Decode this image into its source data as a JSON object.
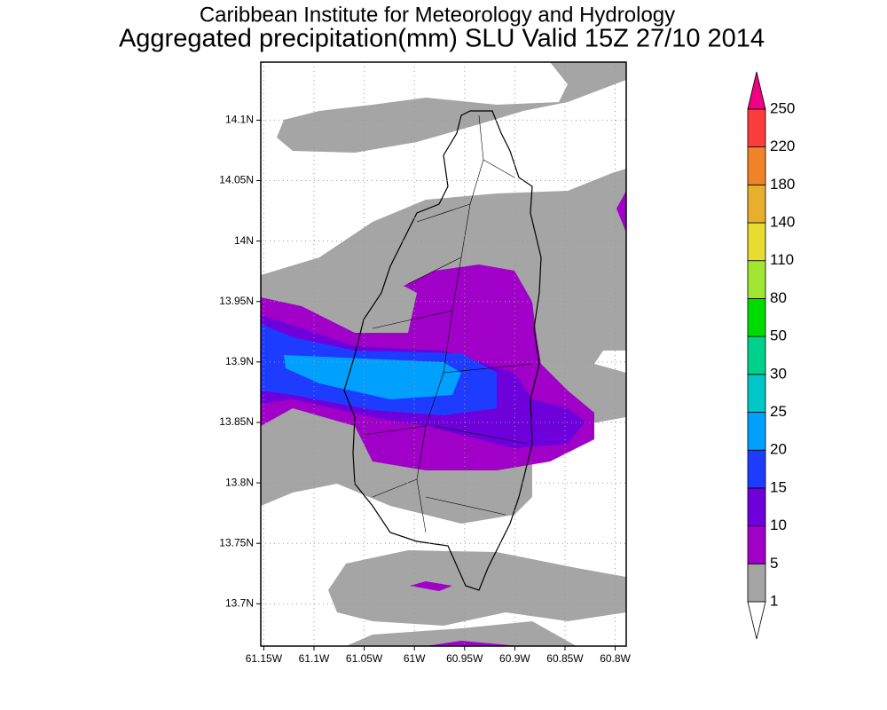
{
  "title": "Caribbean Institute for Meteorology and Hydrology",
  "subtitle": "Aggregated precipitation(mm) SLU Valid 15Z 27/10 2014",
  "map": {
    "xlim": [
      -61.153,
      -60.789
    ],
    "ylim": [
      13.665,
      14.148
    ],
    "xticks": [
      {
        "value": -61.15,
        "label": "61.15W"
      },
      {
        "value": -61.1,
        "label": "61.1W"
      },
      {
        "value": -61.05,
        "label": "61.05W"
      },
      {
        "value": -61.0,
        "label": "61W"
      },
      {
        "value": -60.95,
        "label": "60.95W"
      },
      {
        "value": -60.9,
        "label": "60.9W"
      },
      {
        "value": -60.85,
        "label": "60.85W"
      },
      {
        "value": -60.8,
        "label": "60.8W"
      }
    ],
    "yticks": [
      {
        "value": 13.7,
        "label": "13.7N"
      },
      {
        "value": 13.75,
        "label": "13.75N"
      },
      {
        "value": 13.8,
        "label": "13.8N"
      },
      {
        "value": 13.85,
        "label": "13.85N"
      },
      {
        "value": 13.9,
        "label": "13.9N"
      },
      {
        "value": 13.95,
        "label": "13.95N"
      },
      {
        "value": 14.0,
        "label": "14N"
      },
      {
        "value": 14.05,
        "label": "14.05N"
      },
      {
        "value": 14.1,
        "label": "14.1N"
      }
    ],
    "grid": true
  },
  "colorbar": {
    "levels": [
      1,
      5,
      10,
      15,
      20,
      25,
      30,
      50,
      80,
      110,
      140,
      180,
      220,
      250
    ],
    "colors": [
      "#ffffff",
      "#a5a5a5",
      "#a000c8",
      "#6e00dc",
      "#1e3cff",
      "#00a0ff",
      "#00c8c8",
      "#00d28c",
      "#00dc00",
      "#a0e632",
      "#e6dc32",
      "#e6af2d",
      "#f08228",
      "#fa3c3c",
      "#f00082"
    ]
  }
}
